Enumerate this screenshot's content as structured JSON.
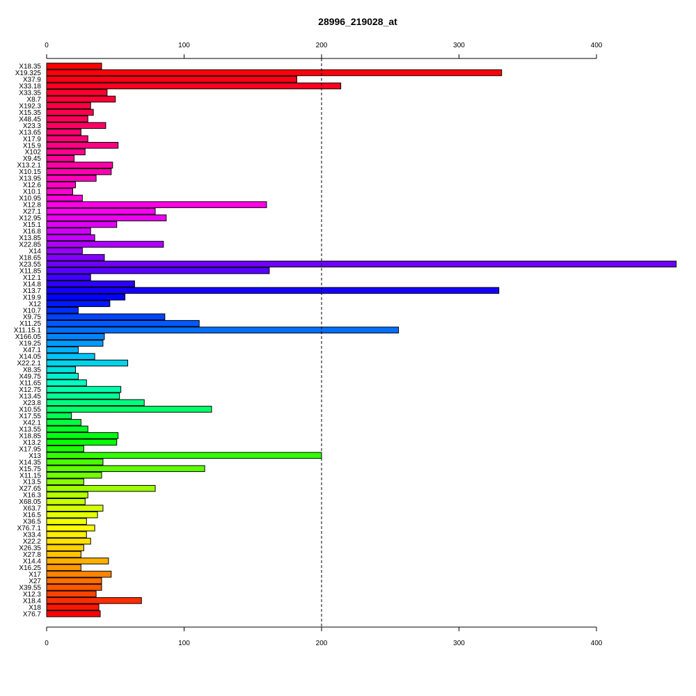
{
  "chart_data": {
    "type": "bar",
    "orientation": "horizontal",
    "title": "28996_219028_at",
    "xlabel": "",
    "ylabel": "",
    "xlim": [
      0,
      458
    ],
    "xticks": [
      0,
      100,
      200,
      300,
      400
    ],
    "axes": [
      "top",
      "bottom"
    ],
    "reference_line": {
      "x": 200,
      "style": "dashed"
    },
    "grid": false,
    "categories": [
      "X18.35",
      "X19.325",
      "X37.9",
      "X33.18",
      "X33.35",
      "X8.7",
      "X192.3",
      "X15.35",
      "X48.45",
      "X23.3",
      "X13.65",
      "X17.9",
      "X15.9",
      "X102",
      "X9.45",
      "X13.2.1",
      "X10.15",
      "X13.95",
      "X12.6",
      "X10.1",
      "X10.95",
      "X12.8",
      "X27.1",
      "X12.95",
      "X15.1",
      "X16.8",
      "X13.85",
      "X22.85",
      "X14",
      "X18.65",
      "X23.55",
      "X11.85",
      "X12.1",
      "X14.8",
      "X13.7",
      "X19.9",
      "X12",
      "X10.7",
      "X9.75",
      "X11.25",
      "X11.15.1",
      "X166.05",
      "X19.25",
      "X47.1",
      "X14.05",
      "X22.2.1",
      "X8.35",
      "X49.75",
      "X11.65",
      "X12.75",
      "X13.45",
      "X23.8",
      "X10.55",
      "X17.55",
      "X42.1",
      "X13.55",
      "X18.85",
      "X13.2",
      "X17.95",
      "X13",
      "X14.35",
      "X15.75",
      "X11.15",
      "X13.5",
      "X27.65",
      "X16.3",
      "X68.05",
      "X63.7",
      "X16.5",
      "X36.5",
      "X76.7.1",
      "X33.4",
      "X22.2",
      "X26.35",
      "X27.8",
      "X14.4",
      "X16.25",
      "X17",
      "X27",
      "X39.55",
      "X12.3",
      "X18.4",
      "X18",
      "X76.7"
    ],
    "values": [
      40,
      331,
      182,
      214,
      44,
      50,
      32,
      34,
      30,
      43,
      25,
      30,
      52,
      28,
      20,
      48,
      47,
      36,
      21,
      19,
      26,
      160,
      79,
      87,
      51,
      32,
      35,
      85,
      26,
      42,
      458,
      162,
      32,
      64,
      329,
      57,
      46,
      23,
      86,
      111,
      256,
      42,
      41,
      23,
      35,
      59,
      21,
      23,
      29,
      54,
      53,
      71,
      120,
      18,
      25,
      30,
      52,
      51,
      27,
      200,
      41,
      115,
      40,
      27,
      79,
      30,
      28,
      41,
      37,
      29,
      35,
      29,
      32,
      27,
      25,
      45,
      25,
      47,
      40,
      40,
      36,
      69,
      38,
      39
    ],
    "colors": [
      "#ff0000",
      "#ff0030",
      "#ff0060",
      "#ff0090",
      "#ff00c0",
      "#ff00f0",
      "#c000ff",
      "#6000ff",
      "#0000ff",
      "#0060ff",
      "#00c0ff",
      "#00ffc0",
      "#00ff60",
      "#00ff00",
      "#60ff00",
      "#c0ff00",
      "#ffff00",
      "#ffc000",
      "#ff6000",
      "#ff0000"
    ]
  }
}
